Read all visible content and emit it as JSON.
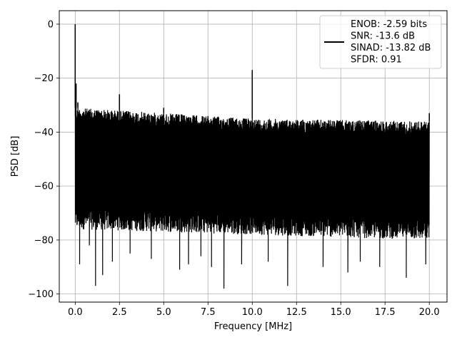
{
  "chart_data": {
    "type": "line",
    "title": "",
    "xlabel": "Frequency [MHz]",
    "ylabel": "PSD [dB]",
    "xlim": [
      -0.9,
      21.0
    ],
    "ylim": [
      -103,
      5
    ],
    "x_ticks": [
      0.0,
      2.5,
      5.0,
      7.5,
      10.0,
      12.5,
      15.0,
      17.5,
      20.0
    ],
    "x_tick_labels": [
      "0.0",
      "2.5",
      "5.0",
      "7.5",
      "10.0",
      "12.5",
      "15.0",
      "17.5",
      "20.0"
    ],
    "y_ticks": [
      0,
      -20,
      -40,
      -60,
      -80,
      -100
    ],
    "y_tick_labels": [
      "0",
      "−20",
      "−40",
      "−60",
      "−80",
      "−100"
    ],
    "grid": true,
    "series": [
      {
        "color": "#000000",
        "freq_range": [
          0,
          20
        ],
        "noise_ceiling_db": [
          [
            0.1,
            -31
          ],
          [
            10,
            -35
          ],
          [
            20,
            -36
          ]
        ],
        "noise_floor_db": [
          [
            0.1,
            -74
          ],
          [
            20,
            -78
          ]
        ],
        "deep_dips_db": [
          [
            0.25,
            -89
          ],
          [
            0.8,
            -82
          ],
          [
            1.15,
            -97
          ],
          [
            1.55,
            -93
          ],
          [
            2.1,
            -88
          ],
          [
            3.1,
            -85
          ],
          [
            4.3,
            -87
          ],
          [
            5.9,
            -91
          ],
          [
            6.4,
            -89
          ],
          [
            7.1,
            -86
          ],
          [
            7.7,
            -90
          ],
          [
            8.4,
            -98
          ],
          [
            9.4,
            -89
          ],
          [
            10.9,
            -88
          ],
          [
            12.0,
            -97
          ],
          [
            14.0,
            -90
          ],
          [
            15.4,
            -92
          ],
          [
            16.1,
            -88
          ],
          [
            17.2,
            -90
          ],
          [
            18.7,
            -94
          ],
          [
            19.8,
            -89
          ]
        ],
        "peaks_db": [
          [
            0.0,
            0
          ],
          [
            0.05,
            -22
          ],
          [
            0.15,
            -29
          ],
          [
            2.5,
            -26
          ],
          [
            5.0,
            -31
          ],
          [
            10.0,
            -17
          ],
          [
            20.0,
            -33
          ]
        ]
      }
    ],
    "legend": {
      "position": "top-right",
      "lines": [
        "ENOB: -2.59 bits",
        "SNR: -13.6 dB",
        "SINAD: -13.82 dB",
        "SFDR: 0.91"
      ]
    }
  }
}
